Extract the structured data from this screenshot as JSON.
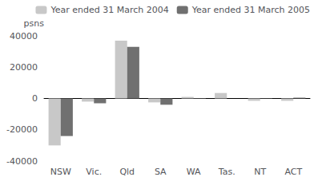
{
  "chart_data": {
    "type": "bar",
    "ylabel": "psns",
    "categories": [
      "NSW",
      "Vic.",
      "Qld",
      "SA",
      "WA",
      "Tas.",
      "NT",
      "ACT"
    ],
    "series": [
      {
        "name": "Year ended 31 March 2004",
        "color": "#c8c8c8",
        "values": [
          -30000,
          -2000,
          37000,
          -2500,
          1000,
          3500,
          -1500,
          -1500
        ]
      },
      {
        "name": "Year ended 31 March 2005",
        "color": "#707070",
        "values": [
          -24000,
          -3000,
          33000,
          -4000,
          200,
          0,
          -200,
          500
        ]
      }
    ],
    "ylim": [
      -40000,
      40000
    ],
    "yticks": [
      -40000,
      -20000,
      0,
      20000,
      40000
    ],
    "grid": false,
    "legend": "upper right"
  }
}
